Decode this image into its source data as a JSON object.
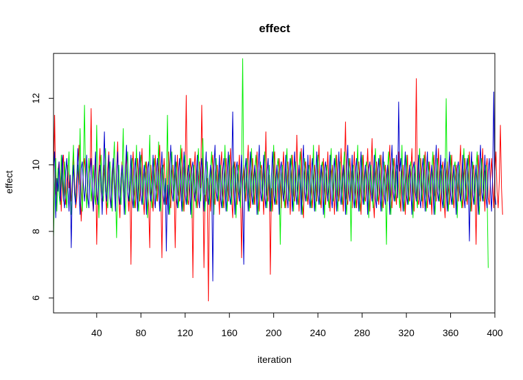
{
  "chart_data": {
    "type": "line",
    "title": "effect",
    "xlabel": "iteration",
    "ylabel": "effect",
    "xlim": [
      1,
      400
    ],
    "ylim": [
      5.55,
      13.35
    ],
    "x_ticks": [
      40,
      80,
      120,
      160,
      200,
      240,
      280,
      320,
      360,
      400
    ],
    "y_ticks": [
      6,
      8,
      10,
      12
    ],
    "grid": false,
    "legend": "none",
    "n_iterations": 400,
    "series": [
      {
        "color": "#ff0000",
        "values": [
          9.6,
          11.5,
          9.2,
          8.9,
          9.8,
          10.1,
          9.4,
          8.6,
          9.9,
          10.3,
          9.1,
          8.8,
          9.5,
          10.0,
          9.3,
          9.7,
          8.9,
          9.2,
          10.4,
          9.6,
          8.7,
          9.0,
          9.8,
          10.6,
          9.4,
          8.3,
          9.1,
          9.9,
          10.2,
          9.5,
          8.9,
          9.3,
          10.1,
          9.7,
          11.7,
          9.0,
          8.6,
          9.4,
          10.3,
          7.6,
          9.1,
          9.8,
          10.5,
          9.2,
          8.8,
          9.6,
          10.0,
          9.3,
          8.5,
          9.9,
          10.4,
          9.1,
          8.7,
          9.5,
          10.2,
          9.4,
          8.9,
          9.8,
          10.7,
          9.0,
          8.4,
          9.6,
          10.1,
          9.3,
          8.8,
          9.7,
          10.3,
          9.2,
          8.6,
          9.5,
          7.0,
          9.9,
          10.4,
          9.1,
          8.7,
          9.6,
          10.2,
          9.4,
          8.9,
          9.8,
          10.5,
          9.0,
          8.5,
          9.7,
          10.1,
          9.3,
          8.8,
          7.5,
          10.0,
          9.2,
          8.6,
          9.5,
          10.3,
          9.4,
          8.9,
          9.9,
          10.6,
          9.1,
          7.2,
          9.7,
          10.2,
          9.3,
          8.8,
          9.6,
          10.4,
          9.2,
          8.7,
          9.8,
          10.0,
          9.4,
          7.5,
          9.5,
          10.3,
          9.1,
          8.9,
          9.7,
          10.5,
          9.3,
          8.6,
          9.9,
          12.1,
          9.0,
          8.8,
          9.6,
          10.2,
          9.4,
          6.6,
          9.8,
          10.4,
          9.2,
          8.7,
          9.5,
          10.1,
          9.3,
          11.8,
          9.7,
          6.9,
          9.1,
          8.9,
          9.6,
          5.9,
          9.4,
          8.6,
          9.8,
          10.3,
          9.2,
          8.8,
          9.5,
          10.0,
          9.3,
          8.5,
          9.9,
          10.4,
          9.1,
          8.7,
          9.6,
          10.2,
          9.4,
          8.9,
          9.8,
          10.5,
          9.0,
          8.4,
          9.7,
          10.1,
          9.3,
          8.8,
          9.6,
          10.3,
          9.2,
          7.2,
          9.5,
          10.0,
          9.4,
          8.9,
          9.9,
          10.6,
          9.1,
          8.7,
          9.7,
          10.2,
          9.3,
          8.8,
          9.6,
          10.4,
          9.2,
          8.6,
          9.8,
          10.0,
          9.4,
          8.5,
          9.5,
          11.0,
          9.1,
          8.9,
          9.7,
          6.7,
          9.3,
          8.6,
          9.9,
          10.4,
          9.0,
          8.8,
          9.6,
          10.2,
          9.4,
          8.7,
          9.8,
          10.4,
          9.2,
          8.7,
          9.5,
          10.1,
          9.3,
          8.5,
          9.7,
          10.3,
          9.1,
          8.9,
          9.6,
          10.9,
          9.4,
          8.6,
          9.8,
          10.5,
          9.0,
          8.4,
          9.7,
          10.1,
          9.3,
          8.8,
          9.6,
          10.3,
          9.2,
          8.7,
          9.5,
          10.0,
          9.4,
          8.9,
          9.9,
          10.6,
          9.1,
          8.7,
          9.7,
          10.2,
          9.3,
          8.8,
          9.6,
          10.4,
          9.2,
          8.6,
          9.8,
          10.0,
          9.4,
          8.5,
          9.5,
          10.3,
          9.1,
          8.9,
          9.7,
          10.5,
          9.3,
          8.6,
          9.9,
          11.3,
          9.0,
          8.8,
          9.6,
          10.2,
          9.4,
          8.7,
          9.8,
          10.4,
          9.2,
          8.7,
          9.5,
          10.1,
          9.3,
          8.5,
          9.7,
          10.3,
          9.1,
          8.9,
          9.6,
          10.5,
          9.4,
          8.6,
          9.8,
          10.8,
          9.0,
          8.4,
          9.7,
          10.1,
          9.3,
          8.8,
          9.6,
          10.3,
          9.2,
          8.7,
          9.5,
          10.0,
          9.4,
          8.9,
          9.9,
          10.6,
          9.1,
          8.7,
          9.7,
          10.2,
          9.3,
          8.8,
          9.6,
          10.4,
          9.2,
          8.6,
          9.8,
          10.0,
          9.4,
          8.5,
          9.5,
          10.3,
          9.1,
          8.9,
          9.7,
          10.5,
          9.3,
          8.6,
          9.9,
          12.6,
          9.0,
          8.8,
          9.6,
          10.2,
          9.4,
          8.7,
          9.8,
          10.4,
          9.2,
          8.7,
          9.5,
          10.1,
          9.3,
          8.5,
          9.7,
          10.3,
          9.1,
          8.9,
          9.6,
          10.5,
          9.4,
          8.6,
          9.8,
          10.1,
          9.0,
          8.4,
          9.7,
          10.1,
          9.3,
          8.8,
          9.6,
          10.3,
          9.2,
          8.7,
          9.5,
          10.0,
          9.4,
          8.9,
          9.9,
          10.6,
          9.1,
          8.7,
          9.7,
          10.2,
          9.3,
          8.8,
          9.6,
          10.4,
          9.2,
          8.6,
          9.8,
          10.0,
          9.4,
          7.6,
          9.5,
          10.3,
          9.1,
          8.9,
          9.7,
          10.5,
          9.3,
          8.6,
          9.9,
          10.2,
          9.0,
          8.8,
          9.6,
          10.2,
          9.4,
          8.7,
          9.8,
          10.4,
          9.2,
          8.7,
          9.5,
          11.2,
          9.3,
          8.5
        ]
      },
      {
        "color": "#00ee00",
        "values": [
          7.8,
          9.4,
          10.2,
          8.6,
          9.9,
          9.1,
          8.8,
          10.3,
          9.5,
          8.9,
          10.1,
          9.2,
          8.7,
          9.8,
          10.4,
          9.0,
          8.5,
          9.7,
          10.6,
          9.3,
          8.8,
          9.6,
          10.0,
          9.4,
          11.1,
          9.2,
          8.6,
          9.9,
          11.8,
          9.5,
          8.7,
          9.3,
          10.2,
          9.7,
          8.9,
          9.4,
          10.0,
          9.1,
          8.8,
          11.2,
          9.6,
          8.4,
          9.5,
          10.3,
          9.2,
          8.9,
          9.8,
          10.5,
          9.0,
          8.7,
          9.6,
          10.1,
          9.4,
          8.6,
          9.9,
          10.7,
          9.2,
          7.8,
          9.5,
          10.0,
          9.3,
          8.8,
          9.7,
          11.1,
          9.1,
          8.5,
          9.8,
          10.4,
          9.4,
          8.9,
          9.6,
          10.2,
          9.2,
          8.7,
          9.5,
          10.6,
          9.0,
          8.6,
          9.9,
          10.3,
          9.3,
          8.8,
          9.7,
          10.1,
          9.5,
          8.4,
          9.6,
          10.9,
          9.1,
          8.7,
          9.8,
          10.2,
          9.4,
          8.9,
          9.5,
          10.7,
          9.2,
          8.6,
          9.9,
          10.0,
          9.3,
          8.8,
          9.6,
          11.5,
          9.0,
          8.5,
          9.7,
          10.4,
          9.4,
          8.9,
          9.8,
          10.1,
          9.2,
          8.7,
          9.5,
          10.6,
          9.1,
          8.6,
          9.9,
          10.3,
          9.3,
          8.8,
          9.6,
          10.2,
          9.5,
          8.4,
          9.7,
          10.0,
          9.1,
          8.7,
          9.8,
          10.5,
          9.4,
          8.9,
          9.6,
          10.8,
          9.2,
          8.6,
          9.5,
          10.1,
          9.3,
          8.8,
          9.9,
          10.4,
          9.0,
          8.5,
          9.7,
          10.2,
          9.4,
          8.9,
          9.8,
          10.0,
          9.2,
          8.7,
          9.6,
          10.6,
          9.1,
          8.6,
          9.5,
          10.3,
          9.3,
          8.8,
          9.9,
          10.1,
          9.5,
          8.4,
          9.7,
          10.0,
          9.1,
          8.7,
          9.8,
          13.2,
          9.4,
          8.9,
          9.6,
          10.2,
          9.2,
          8.6,
          9.5,
          10.5,
          9.3,
          8.8,
          9.9,
          10.3,
          9.0,
          8.5,
          9.7,
          10.1,
          9.4,
          8.9,
          9.8,
          10.4,
          9.2,
          8.7,
          9.6,
          10.0,
          9.1,
          8.6,
          9.5,
          10.6,
          9.3,
          8.8,
          9.9,
          10.2,
          9.5,
          7.6,
          9.7,
          10.0,
          9.1,
          8.7,
          9.8,
          10.5,
          9.4,
          8.9,
          9.6,
          10.3,
          9.2,
          8.6,
          9.5,
          10.1,
          9.3,
          8.8,
          9.9,
          10.4,
          9.0,
          8.5,
          9.7,
          10.2,
          9.4,
          8.9,
          9.8,
          10.0,
          9.2,
          8.7,
          9.6,
          10.6,
          9.1,
          8.6,
          9.5,
          10.3,
          9.3,
          8.8,
          9.9,
          10.1,
          9.5,
          8.4,
          9.7,
          10.0,
          9.1,
          8.7,
          9.8,
          10.5,
          9.4,
          8.9,
          9.6,
          10.3,
          9.2,
          8.6,
          9.5,
          10.1,
          9.3,
          8.8,
          9.9,
          10.4,
          9.0,
          8.5,
          9.7,
          10.2,
          9.4,
          7.7,
          9.8,
          10.0,
          9.2,
          8.7,
          9.6,
          10.6,
          9.1,
          8.6,
          9.5,
          10.3,
          9.3,
          8.8,
          9.9,
          10.1,
          9.5,
          8.4,
          9.7,
          10.0,
          9.1,
          8.7,
          9.8,
          10.5,
          9.4,
          8.9,
          9.6,
          10.3,
          9.2,
          8.6,
          9.5,
          10.1,
          9.3,
          7.6,
          9.9,
          10.4,
          9.0,
          8.5,
          9.7,
          10.2,
          9.4,
          8.9,
          9.8,
          10.0,
          9.2,
          8.7,
          9.6,
          10.6,
          9.1,
          8.6,
          9.5,
          10.3,
          9.3,
          8.8,
          9.9,
          10.1,
          9.5,
          8.4,
          9.7,
          10.0,
          9.1,
          8.7,
          9.8,
          10.5,
          9.4,
          8.9,
          9.6,
          10.3,
          9.2,
          8.6,
          9.5,
          10.1,
          9.3,
          8.8,
          9.9,
          10.4,
          9.0,
          8.5,
          9.7,
          10.2,
          9.4,
          8.9,
          9.8,
          10.0,
          9.2,
          8.7,
          9.6,
          12.0,
          9.1,
          8.6,
          9.5,
          10.3,
          9.3,
          8.8,
          9.9,
          10.1,
          9.5,
          8.4,
          9.7,
          10.0,
          9.1,
          8.7,
          9.8,
          10.5,
          9.4,
          8.9,
          9.6,
          10.3,
          9.2,
          8.6,
          9.5,
          10.1,
          9.3,
          8.8,
          9.9,
          10.4,
          9.0,
          8.5,
          9.7,
          10.2,
          9.4,
          8.9,
          9.8,
          10.0,
          9.2,
          6.9
        ]
      },
      {
        "color": "#0000cc",
        "values": [
          9.9,
          10.4,
          8.4,
          9.6,
          9.2,
          10.1,
          8.9,
          9.5,
          10.3,
          9.0,
          8.7,
          9.8,
          10.2,
          9.3,
          8.6,
          9.7,
          7.5,
          9.4,
          10.0,
          9.1,
          8.8,
          9.6,
          10.5,
          9.2,
          8.5,
          9.9,
          10.1,
          9.4,
          8.9,
          9.5,
          10.3,
          9.0,
          8.7,
          9.8,
          10.2,
          9.3,
          8.6,
          9.7,
          10.4,
          9.1,
          8.8,
          9.6,
          10.0,
          9.4,
          8.5,
          9.9,
          11.0,
          9.2,
          8.9,
          9.5,
          10.3,
          9.0,
          8.7,
          9.8,
          10.2,
          9.3,
          8.6,
          9.7,
          10.4,
          9.1,
          8.8,
          9.6,
          10.0,
          9.4,
          8.5,
          9.9,
          10.6,
          9.2,
          8.9,
          9.5,
          10.3,
          9.0,
          8.7,
          9.8,
          10.2,
          9.3,
          8.6,
          9.7,
          10.4,
          9.1,
          8.8,
          9.6,
          10.0,
          9.4,
          8.5,
          9.9,
          10.1,
          9.2,
          8.9,
          9.5,
          10.3,
          9.0,
          8.7,
          9.8,
          10.2,
          9.3,
          8.6,
          9.7,
          10.4,
          9.1,
          8.8,
          9.6,
          7.4,
          9.4,
          8.5,
          9.9,
          10.6,
          9.2,
          8.9,
          9.5,
          10.3,
          9.0,
          8.7,
          9.8,
          10.2,
          9.3,
          8.6,
          9.7,
          10.4,
          9.1,
          8.8,
          9.6,
          10.0,
          9.4,
          8.5,
          9.9,
          10.1,
          9.2,
          8.9,
          9.5,
          10.3,
          9.0,
          8.7,
          9.8,
          10.2,
          9.3,
          8.6,
          9.7,
          10.4,
          9.1,
          8.8,
          9.6,
          10.0,
          9.4,
          6.5,
          9.9,
          10.6,
          9.2,
          8.9,
          9.5,
          10.3,
          9.0,
          8.7,
          9.8,
          10.2,
          9.3,
          8.6,
          9.7,
          10.4,
          9.1,
          8.8,
          9.6,
          11.6,
          9.4,
          8.5,
          9.9,
          10.1,
          9.2,
          8.9,
          9.5,
          10.3,
          9.0,
          7.0,
          9.8,
          10.2,
          9.3,
          8.6,
          9.7,
          10.4,
          9.1,
          8.8,
          9.6,
          10.0,
          9.4,
          8.5,
          9.9,
          10.6,
          9.2,
          8.9,
          9.5,
          10.3,
          9.0,
          8.7,
          9.8,
          10.2,
          9.3,
          8.6,
          9.7,
          10.4,
          9.1,
          8.8,
          9.6,
          10.0,
          9.4,
          8.5,
          9.9,
          10.1,
          9.2,
          8.9,
          9.5,
          10.3,
          9.0,
          8.7,
          9.8,
          10.2,
          9.3,
          8.6,
          9.7,
          10.4,
          9.1,
          8.8,
          9.6,
          10.0,
          9.4,
          8.5,
          9.9,
          10.6,
          9.2,
          8.9,
          9.5,
          10.3,
          9.0,
          8.7,
          9.8,
          10.2,
          9.3,
          8.6,
          9.7,
          10.4,
          9.1,
          8.8,
          9.6,
          10.0,
          9.4,
          8.5,
          9.9,
          10.1,
          9.2,
          8.9,
          9.5,
          10.3,
          9.0,
          8.7,
          9.8,
          10.2,
          9.3,
          8.6,
          9.7,
          10.4,
          9.1,
          8.8,
          9.6,
          10.0,
          9.4,
          8.5,
          9.9,
          10.6,
          9.2,
          8.9,
          9.5,
          10.3,
          9.0,
          8.7,
          9.8,
          10.2,
          9.3,
          8.6,
          9.7,
          10.4,
          9.1,
          8.8,
          9.6,
          10.0,
          9.4,
          8.5,
          9.9,
          10.1,
          9.2,
          8.9,
          9.5,
          10.3,
          9.0,
          8.7,
          9.8,
          10.2,
          9.3,
          8.6,
          9.7,
          10.4,
          9.1,
          8.8,
          9.6,
          10.0,
          9.4,
          8.5,
          9.9,
          10.6,
          9.2,
          8.9,
          9.5,
          10.3,
          9.0,
          11.9,
          9.8,
          10.2,
          9.3,
          8.6,
          9.7,
          10.4,
          9.1,
          8.8,
          9.6,
          10.0,
          9.4,
          8.5,
          9.9,
          10.1,
          9.2,
          8.9,
          9.5,
          10.3,
          9.0,
          8.7,
          9.8,
          10.2,
          9.3,
          8.6,
          9.7,
          10.4,
          9.1,
          8.8,
          9.6,
          10.0,
          9.4,
          8.5,
          9.9,
          10.6,
          9.2,
          8.9,
          9.5,
          10.3,
          9.0,
          8.7,
          9.8,
          10.2,
          9.3,
          8.6,
          9.7,
          10.4,
          9.1,
          8.8,
          9.6,
          10.0,
          9.4,
          8.5,
          9.9,
          10.1,
          9.2,
          8.9,
          9.5,
          10.3,
          9.0,
          8.7,
          9.8,
          10.2,
          9.3,
          7.7,
          9.7,
          10.4,
          9.1,
          8.8,
          9.6,
          10.0,
          9.4,
          8.5,
          9.9,
          10.6,
          9.2,
          8.9,
          9.5,
          10.3,
          9.0,
          8.7,
          9.8,
          10.2,
          9.3,
          8.6,
          9.7,
          12.2,
          9.1,
          8.8
        ]
      }
    ]
  }
}
